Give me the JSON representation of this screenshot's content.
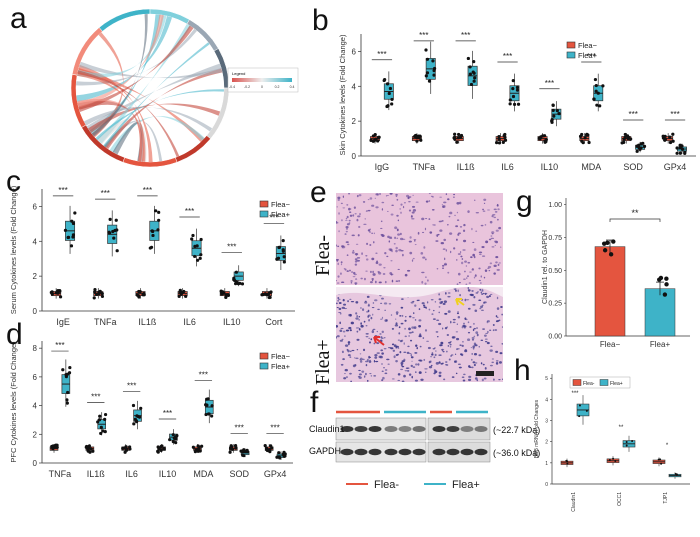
{
  "colors": {
    "flea_minus": "#E4553F",
    "flea_plus": "#3EB3C8",
    "box_stroke": "#333333"
  },
  "panels": {
    "a": "a",
    "b": "b",
    "c": "c",
    "d": "d",
    "e": "e",
    "f": "f",
    "g": "g",
    "h": "h"
  },
  "panel_a": {
    "legend_title": "Legend",
    "legend_scale": [
      "-0.4",
      "-0.2",
      "0",
      "0.2",
      "0.4"
    ]
  },
  "panel_b": {
    "ylabel": "Skin Cytokines levels (Fold Change)",
    "yticks": [
      "0",
      "2",
      "4",
      "6"
    ],
    "categories": [
      "IgG",
      "TNFa",
      "IL1ß",
      "IL6",
      "IL10",
      "MDA",
      "SOD",
      "GPx4"
    ],
    "sig": [
      "***",
      "***",
      "***",
      "***",
      "***",
      "***",
      "***",
      "***"
    ],
    "legend": [
      "Flea−",
      "Flea+"
    ],
    "minus_medians": [
      1.0,
      1.0,
      1.0,
      1.0,
      1.0,
      1.0,
      1.0,
      1.0
    ],
    "plus_medians": [
      3.7,
      5.0,
      4.6,
      3.6,
      2.4,
      3.6,
      0.5,
      0.4
    ]
  },
  "panel_c": {
    "ylabel": "Serum Cytokines levels (Fold Change)",
    "yticks": [
      "0",
      "2",
      "4",
      "6"
    ],
    "categories": [
      "IgE",
      "TNFa",
      "IL1ß",
      "IL6",
      "IL10",
      "Cort"
    ],
    "sig": [
      "***",
      "***",
      "***",
      "***",
      "***",
      "***"
    ],
    "legend": [
      "Flea−",
      "Flea+"
    ],
    "minus_medians": [
      1.0,
      1.0,
      1.0,
      1.0,
      1.0,
      1.0
    ],
    "plus_medians": [
      4.6,
      4.4,
      4.6,
      3.6,
      2.0,
      3.3
    ]
  },
  "panel_d": {
    "ylabel": "PFC Cytokines levels (Fold Change)",
    "yticks": [
      "0",
      "2",
      "4",
      "6",
      "8"
    ],
    "categories": [
      "TNFa",
      "IL1ß",
      "IL6",
      "IL10",
      "MDA",
      "SOD",
      "GPx4"
    ],
    "sig": [
      "***",
      "***",
      "***",
      "***",
      "***",
      "***",
      "***"
    ],
    "legend": [
      "Flea−",
      "Flea+"
    ],
    "minus_medians": [
      1.0,
      1.0,
      1.0,
      1.0,
      1.0,
      1.0,
      1.0
    ],
    "plus_medians": [
      5.5,
      2.7,
      3.3,
      1.8,
      3.9,
      0.7,
      0.5
    ]
  },
  "panel_e": {
    "top_label": "Flea-",
    "bottom_label": "Flea+"
  },
  "panel_f": {
    "rows": [
      "Claudin1",
      "GAPDH"
    ],
    "sizes": [
      "(~22.7 kDa)",
      "(~36.0 kDa)"
    ],
    "legend": [
      "Flea-",
      "Flea+"
    ]
  },
  "panel_g": {
    "ylabel": "Claudin1 rel. to GAPDH",
    "yticks": [
      "0.00",
      "0.25",
      "0.50",
      "0.75",
      "1.00"
    ],
    "categories": [
      "Flea−",
      "Flea+"
    ],
    "values": [
      0.68,
      0.36
    ],
    "sig": "**"
  },
  "panel_h": {
    "ylabel": "BBB mRNA Fold Changes",
    "yticks": [
      "0",
      "1",
      "2",
      "3",
      "4",
      "5"
    ],
    "categories": [
      "Claudin1",
      "OCC1",
      "TJP1"
    ],
    "sig": [
      "***",
      "**",
      "*"
    ],
    "legend": [
      "Flea-",
      "Flea+"
    ],
    "minus_medians": [
      1.0,
      1.1,
      1.05
    ],
    "plus_medians": [
      3.5,
      1.9,
      0.4
    ]
  },
  "chart_data": [
    {
      "type": "bar",
      "panel": "b",
      "title": "",
      "ylabel": "Skin Cytokines levels (Fold Change)",
      "categories": [
        "IgG",
        "TNFa",
        "IL1ß",
        "IL6",
        "IL10",
        "MDA",
        "SOD",
        "GPx4"
      ],
      "series": [
        {
          "name": "Flea−",
          "values": [
            1.0,
            1.0,
            1.0,
            1.0,
            1.0,
            1.0,
            1.0,
            1.0
          ]
        },
        {
          "name": "Flea+",
          "values": [
            3.7,
            5.0,
            4.6,
            3.6,
            2.4,
            3.6,
            0.5,
            0.4
          ]
        }
      ],
      "ylim": [
        0,
        7
      ]
    },
    {
      "type": "bar",
      "panel": "c",
      "title": "",
      "ylabel": "Serum Cytokines levels (Fold Change)",
      "categories": [
        "IgE",
        "TNFa",
        "IL1ß",
        "IL6",
        "IL10",
        "Cort"
      ],
      "series": [
        {
          "name": "Flea−",
          "values": [
            1.0,
            1.0,
            1.0,
            1.0,
            1.0,
            1.0
          ]
        },
        {
          "name": "Flea+",
          "values": [
            4.6,
            4.4,
            4.6,
            3.6,
            2.0,
            3.3
          ]
        }
      ],
      "ylim": [
        0,
        7
      ]
    },
    {
      "type": "bar",
      "panel": "d",
      "title": "",
      "ylabel": "PFC Cytokines levels (Fold Change)",
      "categories": [
        "TNFa",
        "IL1ß",
        "IL6",
        "IL10",
        "MDA",
        "SOD",
        "GPx4"
      ],
      "series": [
        {
          "name": "Flea−",
          "values": [
            1.0,
            1.0,
            1.0,
            1.0,
            1.0,
            1.0,
            1.0
          ]
        },
        {
          "name": "Flea+",
          "values": [
            5.5,
            2.7,
            3.3,
            1.8,
            3.9,
            0.7,
            0.5
          ]
        }
      ],
      "ylim": [
        0,
        8.5
      ]
    },
    {
      "type": "bar",
      "panel": "g",
      "title": "",
      "ylabel": "Claudin1 rel. to GAPDH",
      "categories": [
        "Flea−",
        "Flea+"
      ],
      "values": [
        0.68,
        0.36
      ],
      "ylim": [
        0,
        1.05
      ]
    },
    {
      "type": "bar",
      "panel": "h",
      "title": "",
      "ylabel": "BBB mRNA Fold Changes",
      "categories": [
        "Claudin1",
        "OCC1",
        "TJP1"
      ],
      "series": [
        {
          "name": "Flea-",
          "values": [
            1.0,
            1.1,
            1.05
          ]
        },
        {
          "name": "Flea+",
          "values": [
            3.5,
            1.9,
            0.4
          ]
        }
      ],
      "ylim": [
        0,
        5.2
      ]
    }
  ]
}
